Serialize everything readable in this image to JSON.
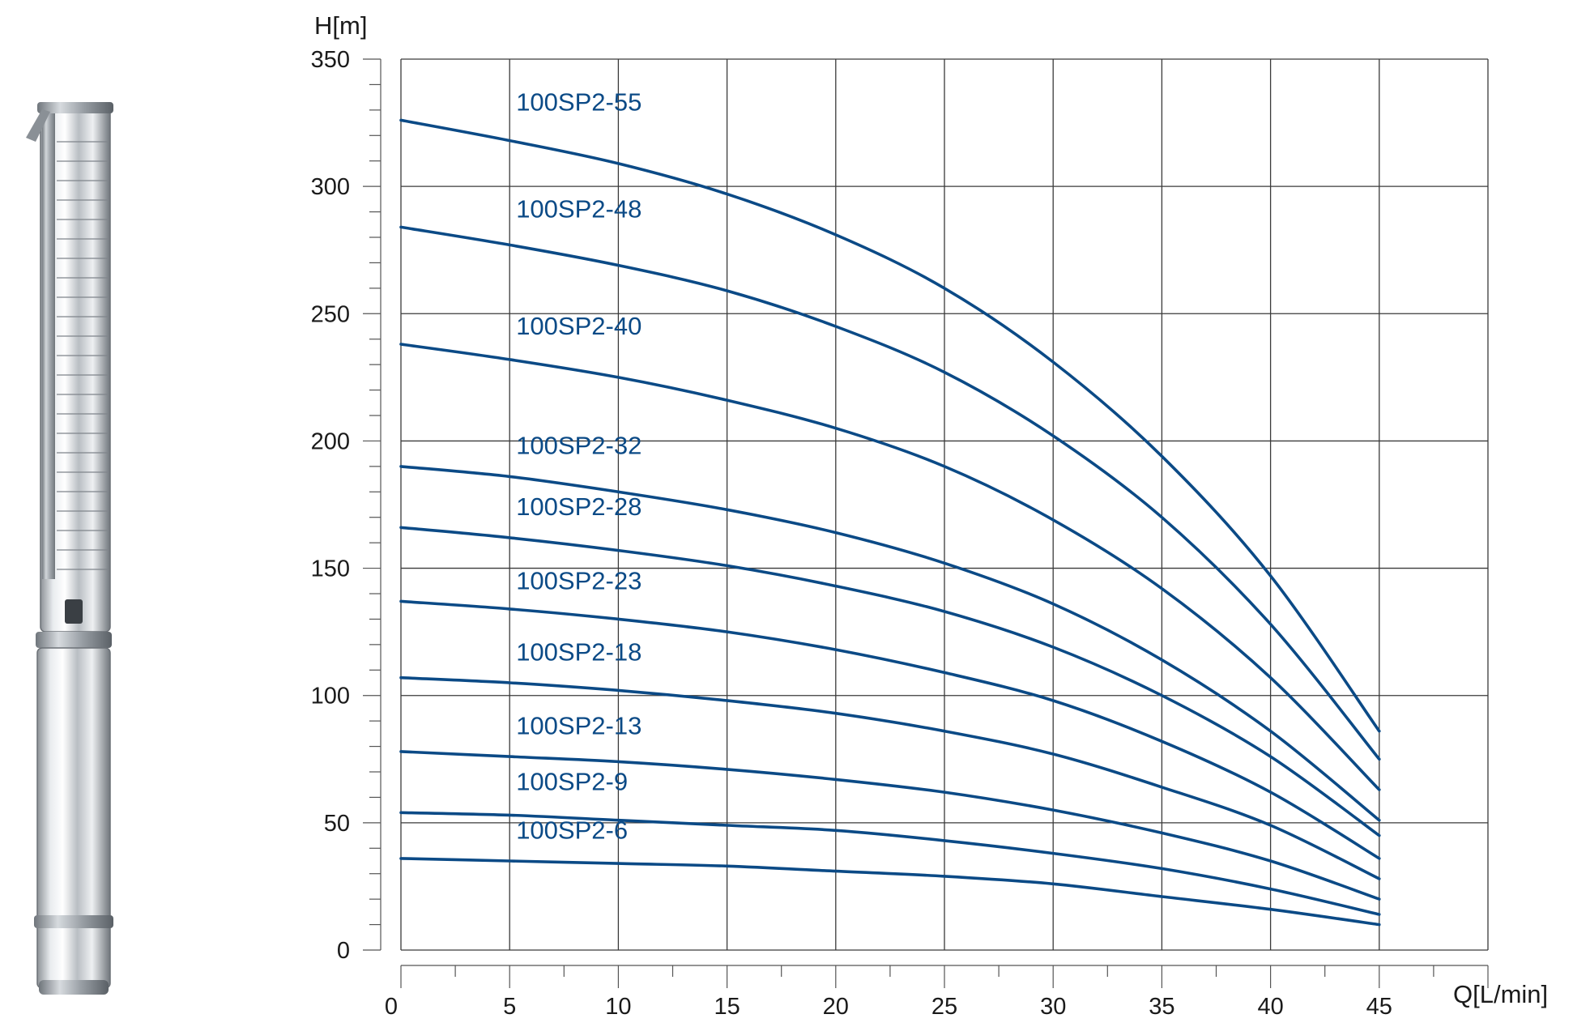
{
  "colors": {
    "curve": "#0b4a86",
    "grid": "#3a3a3a",
    "text": "#1a1a1a"
  },
  "illustration": {
    "icon": "submersible-pump-icon"
  },
  "chart_data": {
    "type": "line",
    "title": "",
    "xlabel": "Q[L/min]",
    "ylabel": "H[m]",
    "xlim": [
      0,
      50
    ],
    "ylim": [
      0,
      350
    ],
    "xticks": [
      0,
      5,
      10,
      15,
      20,
      25,
      30,
      35,
      40,
      45
    ],
    "yticks": [
      0,
      50,
      100,
      150,
      200,
      250,
      300,
      350
    ],
    "xtick_labels": [
      "0",
      "5",
      "10",
      "15",
      "20",
      "25",
      "30",
      "35",
      "40",
      "45"
    ],
    "ytick_labels": [
      "0",
      "50",
      "100",
      "150",
      "200",
      "250",
      "300",
      "350"
    ],
    "grid": true,
    "x": [
      0,
      5,
      10,
      15,
      20,
      25,
      30,
      35,
      40,
      45
    ],
    "series": [
      {
        "name": "100SP2-55",
        "label_at": [
          5,
          326
        ],
        "values": [
          326,
          318,
          309,
          297,
          281,
          260,
          231,
          194,
          147,
          86
        ]
      },
      {
        "name": "100SP2-48",
        "label_at": [
          5,
          284
        ],
        "values": [
          284,
          277,
          269,
          259,
          245,
          227,
          202,
          170,
          128,
          75
        ]
      },
      {
        "name": "100SP2-40",
        "label_at": [
          5,
          238
        ],
        "values": [
          238,
          232,
          225,
          216,
          205,
          190,
          169,
          142,
          107,
          63
        ]
      },
      {
        "name": "100SP2-32",
        "label_at": [
          5,
          191
        ],
        "values": [
          190,
          186,
          180,
          173,
          164,
          152,
          136,
          114,
          86,
          51
        ]
      },
      {
        "name": "100SP2-28",
        "label_at": [
          5,
          167
        ],
        "values": [
          166,
          162,
          157,
          151,
          143,
          133,
          119,
          100,
          76,
          45
        ]
      },
      {
        "name": "100SP2-23",
        "label_at": [
          5,
          138
        ],
        "values": [
          137,
          134,
          130,
          125,
          118,
          109,
          98,
          82,
          62,
          36
        ]
      },
      {
        "name": "100SP2-18",
        "label_at": [
          5,
          110
        ],
        "values": [
          107,
          105,
          102,
          98,
          93,
          86,
          77,
          64,
          49,
          28
        ]
      },
      {
        "name": "100SP2-13",
        "label_at": [
          5,
          81
        ],
        "values": [
          78,
          76,
          74,
          71,
          67,
          62,
          55,
          46,
          35,
          20
        ]
      },
      {
        "name": "100SP2-9",
        "label_at": [
          5,
          59
        ],
        "values": [
          54,
          53,
          51,
          49,
          47,
          43,
          38,
          32,
          24,
          14
        ]
      },
      {
        "name": "100SP2-6",
        "label_at": [
          5,
          40
        ],
        "values": [
          36,
          35,
          34,
          33,
          31,
          29,
          26,
          21,
          16,
          10
        ]
      }
    ]
  }
}
